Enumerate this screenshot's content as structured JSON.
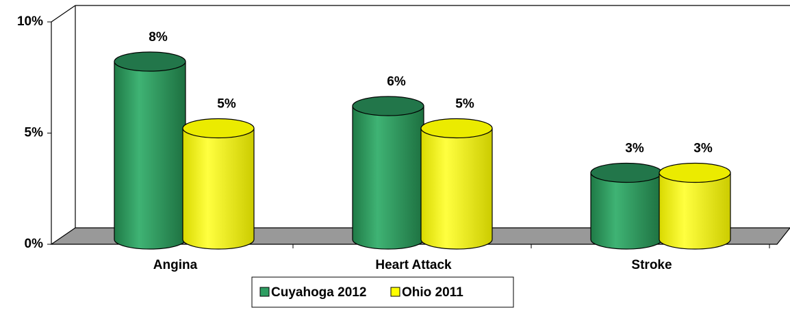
{
  "chart_data": {
    "type": "bar3d",
    "categories": [
      "Angina",
      "Heart Attack",
      "Stroke"
    ],
    "series": [
      {
        "name": "Cuyahoga 2012",
        "color": "#2e9e62",
        "values": [
          8,
          6,
          3
        ],
        "value_labels": [
          "8%",
          "6%",
          "3%"
        ]
      },
      {
        "name": "Ohio 2011",
        "color": "#ffff00",
        "values": [
          5,
          5,
          3
        ],
        "value_labels": [
          "5%",
          "5%",
          "3%"
        ]
      }
    ],
    "ylim": [
      0,
      10
    ],
    "yticks": [
      {
        "value": 0,
        "label": "0%"
      },
      {
        "value": 5,
        "label": "5%"
      },
      {
        "value": 10,
        "label": "10%"
      }
    ],
    "legend": "bottom"
  }
}
